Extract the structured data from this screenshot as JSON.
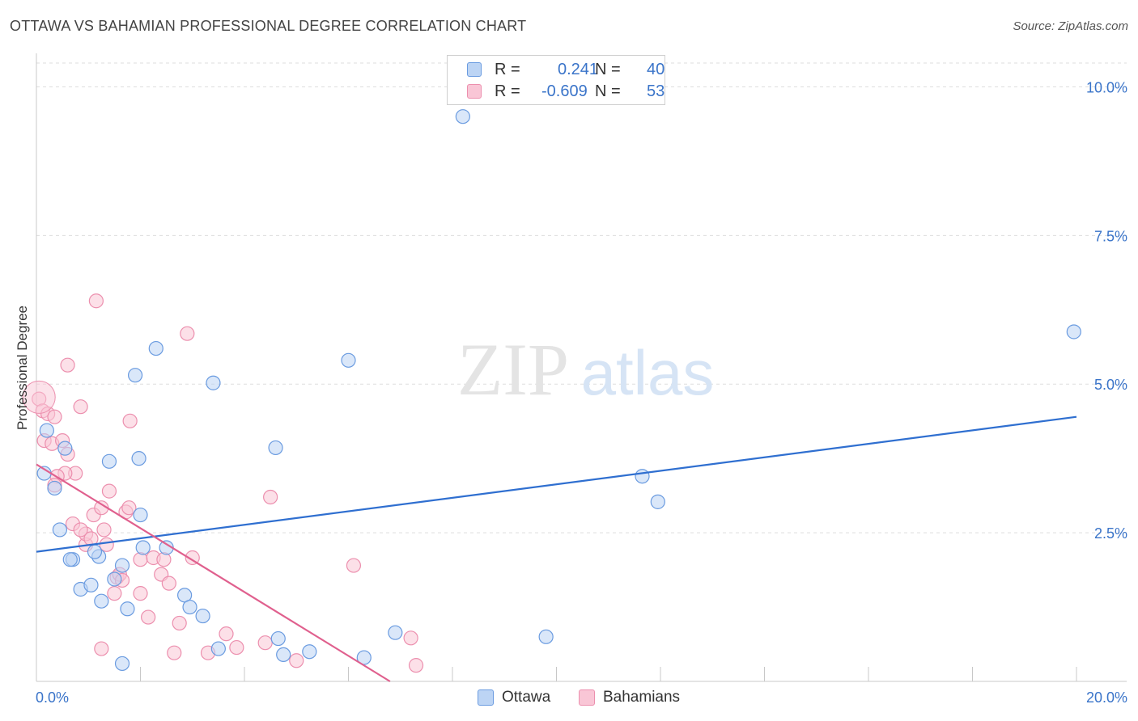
{
  "title": "OTTAWA VS BAHAMIAN PROFESSIONAL DEGREE CORRELATION CHART",
  "source": "Source: ZipAtlas.com",
  "watermark": {
    "zip": "ZIP",
    "atlas": "atlas"
  },
  "legend": {
    "r_label": "R =",
    "n_label": "N =",
    "ottawa": {
      "r": "0.241",
      "n": "40"
    },
    "bahamians": {
      "r": "-0.609",
      "n": "53"
    }
  },
  "colors": {
    "ottawa_fill": "#bcd4f4",
    "ottawa_stroke": "#6a9be0",
    "ottawa_line": "#2f6fd0",
    "bahamians_fill": "#f9c6d6",
    "bahamians_stroke": "#ec8fae",
    "bahamians_line": "#e0608e",
    "tick_label": "#3a74c9",
    "grid": "#dddddd"
  },
  "chart_data": {
    "type": "scatter",
    "title": "OTTAWA VS BAHAMIAN PROFESSIONAL DEGREE CORRELATION CHART",
    "ylabel": "Professional Degree",
    "xlabel": "",
    "xlim": [
      0,
      20
    ],
    "ylim": [
      0,
      10.4
    ],
    "x_tick_labels": [
      {
        "x": 0,
        "label": "0.0%"
      },
      {
        "x": 20,
        "label": "20.0%"
      }
    ],
    "y_ticks": [
      {
        "y": 2.5,
        "label": "2.5%"
      },
      {
        "y": 5,
        "label": "5.0%"
      },
      {
        "y": 7.5,
        "label": "7.5%"
      },
      {
        "y": 10,
        "label": "10.0%"
      }
    ],
    "series": [
      {
        "name": "Ottawa",
        "trend": {
          "x0": 0,
          "y0": 2.18,
          "x1": 20,
          "y1": 4.45
        },
        "points": [
          [
            0.2,
            4.22
          ],
          [
            0.15,
            3.5
          ],
          [
            0.35,
            3.25
          ],
          [
            0.45,
            2.55
          ],
          [
            0.55,
            3.92
          ],
          [
            0.7,
            2.05
          ],
          [
            0.65,
            2.05
          ],
          [
            0.85,
            1.55
          ],
          [
            1.2,
            2.1
          ],
          [
            1.05,
            1.62
          ],
          [
            1.25,
            1.35
          ],
          [
            1.4,
            3.7
          ],
          [
            1.65,
            1.95
          ],
          [
            1.5,
            1.72
          ],
          [
            1.75,
            1.22
          ],
          [
            1.9,
            5.15
          ],
          [
            1.97,
            3.75
          ],
          [
            2.0,
            2.8
          ],
          [
            2.05,
            2.25
          ],
          [
            2.5,
            2.25
          ],
          [
            2.85,
            1.45
          ],
          [
            2.95,
            1.25
          ],
          [
            3.2,
            1.1
          ],
          [
            3.4,
            5.02
          ],
          [
            3.5,
            0.55
          ],
          [
            4.6,
            3.93
          ],
          [
            4.65,
            0.72
          ],
          [
            4.75,
            0.45
          ],
          [
            5.25,
            0.5
          ],
          [
            6.0,
            5.4
          ],
          [
            6.3,
            0.4
          ],
          [
            6.9,
            0.82
          ],
          [
            9.8,
            0.75
          ],
          [
            11.65,
            3.45
          ],
          [
            11.95,
            3.02
          ],
          [
            19.95,
            5.88
          ],
          [
            1.65,
            0.3
          ],
          [
            8.2,
            9.5
          ],
          [
            1.12,
            2.18
          ],
          [
            2.3,
            5.6
          ]
        ]
      },
      {
        "name": "Bahamians",
        "trend": {
          "x0": 0,
          "y0": 3.65,
          "x1": 6.8,
          "y1": 0
        },
        "points": [
          [
            0.05,
            4.75
          ],
          [
            0.12,
            4.55
          ],
          [
            0.22,
            4.5
          ],
          [
            0.35,
            4.45
          ],
          [
            0.15,
            4.05
          ],
          [
            0.3,
            4.0
          ],
          [
            0.5,
            4.05
          ],
          [
            0.6,
            3.82
          ],
          [
            0.75,
            3.5
          ],
          [
            0.55,
            3.5
          ],
          [
            0.4,
            3.45
          ],
          [
            0.35,
            3.3
          ],
          [
            0.6,
            5.32
          ],
          [
            0.85,
            4.62
          ],
          [
            1.15,
            6.4
          ],
          [
            0.7,
            2.65
          ],
          [
            0.95,
            2.3
          ],
          [
            0.95,
            2.48
          ],
          [
            1.05,
            2.4
          ],
          [
            1.1,
            2.8
          ],
          [
            1.25,
            2.92
          ],
          [
            1.3,
            2.55
          ],
          [
            1.4,
            3.2
          ],
          [
            1.5,
            1.48
          ],
          [
            1.55,
            1.75
          ],
          [
            1.6,
            1.8
          ],
          [
            1.65,
            1.7
          ],
          [
            1.72,
            2.85
          ],
          [
            1.78,
            2.92
          ],
          [
            1.8,
            4.38
          ],
          [
            2.0,
            1.48
          ],
          [
            2.0,
            2.05
          ],
          [
            2.15,
            1.08
          ],
          [
            2.25,
            2.08
          ],
          [
            2.4,
            1.8
          ],
          [
            2.45,
            2.05
          ],
          [
            2.55,
            1.65
          ],
          [
            2.65,
            0.48
          ],
          [
            2.75,
            0.98
          ],
          [
            2.9,
            5.85
          ],
          [
            3.0,
            2.08
          ],
          [
            3.3,
            0.48
          ],
          [
            3.65,
            0.8
          ],
          [
            3.85,
            0.57
          ],
          [
            4.4,
            0.65
          ],
          [
            4.5,
            3.1
          ],
          [
            5.0,
            0.35
          ],
          [
            6.1,
            1.95
          ],
          [
            7.2,
            0.73
          ],
          [
            7.3,
            0.27
          ],
          [
            1.25,
            0.55
          ],
          [
            0.85,
            2.55
          ],
          [
            1.35,
            2.3
          ]
        ]
      }
    ]
  },
  "bottom_legend": [
    "Ottawa",
    "Bahamians"
  ]
}
